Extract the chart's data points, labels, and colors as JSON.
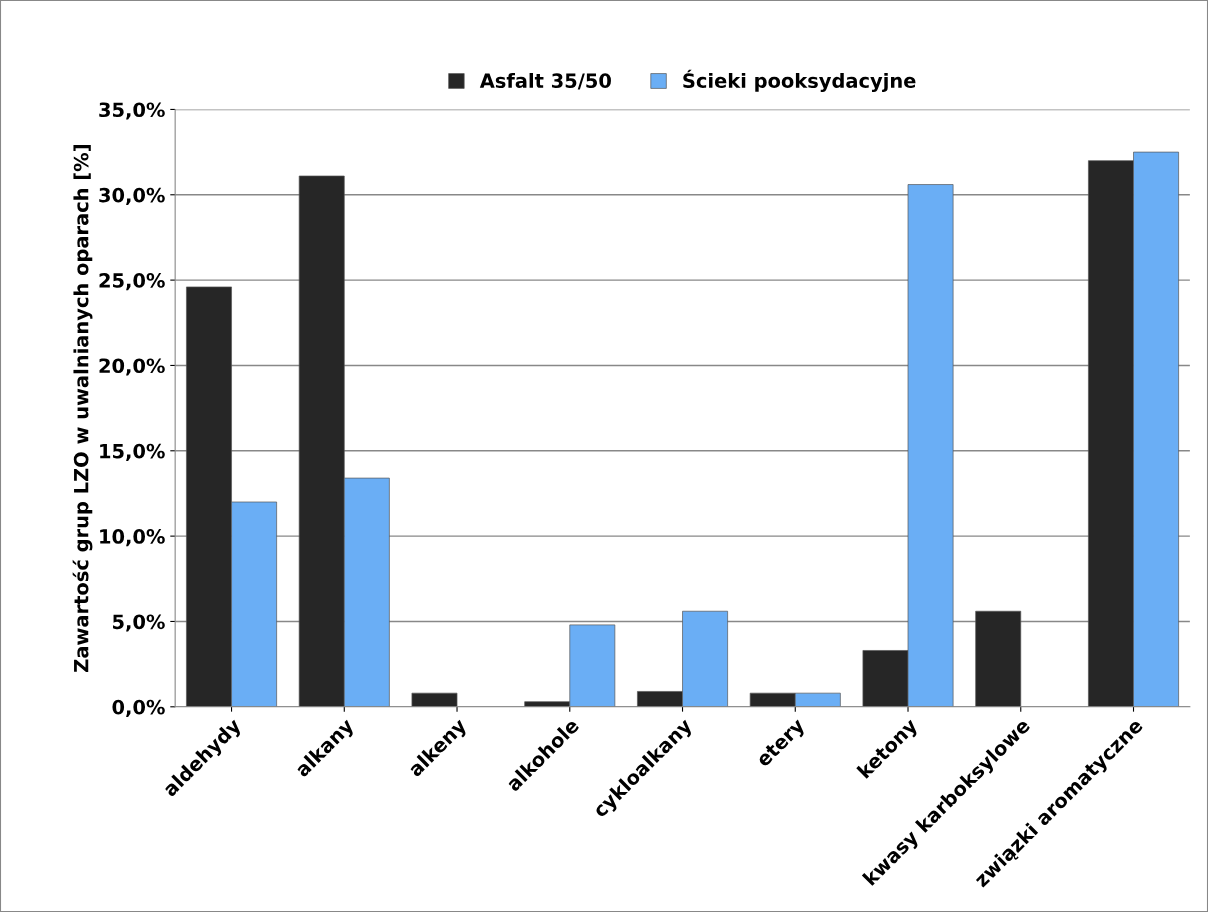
{
  "chart_data": {
    "type": "bar",
    "ylabel": "Zawartość grup LZO w uwalnianych oparach [%]",
    "categories": [
      "aldehydy",
      "alkany",
      "alkeny",
      "alkohole",
      "cykloalkany",
      "etery",
      "ketony",
      "kwasy karboksylowe",
      "związki aromatyczne"
    ],
    "series": [
      {
        "name": "Asfalt 35/50",
        "color": "#262626",
        "values": [
          24.6,
          31.1,
          0.8,
          0.3,
          0.9,
          0.8,
          3.3,
          5.6,
          32.0
        ]
      },
      {
        "name": "Ścieki pooksydacyjne",
        "color": "#6aaef5",
        "values": [
          12.0,
          13.4,
          null,
          4.8,
          5.6,
          0.8,
          30.6,
          null,
          32.5
        ]
      }
    ],
    "ylim": [
      0,
      35
    ],
    "yticks": [
      {
        "value": 0,
        "label": "0,0%"
      },
      {
        "value": 5,
        "label": "5,0%"
      },
      {
        "value": 10,
        "label": "10,0%"
      },
      {
        "value": 15,
        "label": "15,0%"
      },
      {
        "value": 20,
        "label": "20,0%"
      },
      {
        "value": 25,
        "label": "25,0%"
      },
      {
        "value": 30,
        "label": "30,0%"
      },
      {
        "value": 35,
        "label": "35,0%"
      }
    ],
    "grid": "y",
    "legend": "top"
  }
}
